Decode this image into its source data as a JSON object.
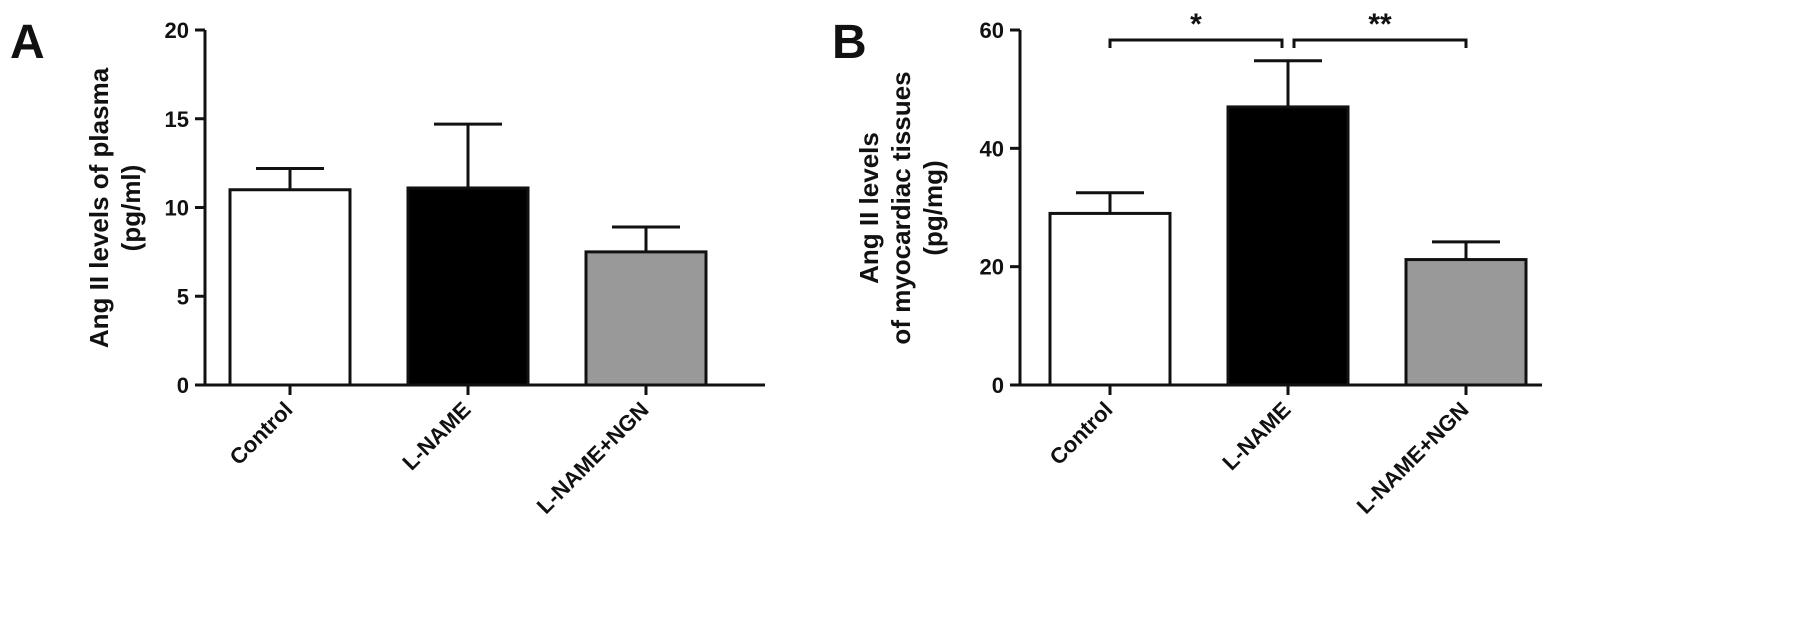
{
  "chart_data": [
    {
      "type": "bar",
      "panel": "A",
      "categories": [
        "Control",
        "L-NAME",
        "L-NAME+NGN"
      ],
      "values": [
        11.0,
        11.1,
        7.5
      ],
      "errors": [
        1.2,
        3.6,
        1.4
      ],
      "bar_colors": [
        "#ffffff",
        "#000000",
        "#999999"
      ],
      "ylabel_lines": [
        "Ang II levels of plasma",
        "(pg/ml)"
      ],
      "ylim": [
        0,
        20
      ],
      "yticks": [
        0,
        5,
        10,
        15,
        20
      ],
      "significance": []
    },
    {
      "type": "bar",
      "panel": "B",
      "categories": [
        "Control",
        "L-NAME",
        "L-NAME+NGN"
      ],
      "values": [
        29,
        47,
        21.2
      ],
      "errors": [
        3.5,
        7.8,
        3.0
      ],
      "bar_colors": [
        "#ffffff",
        "#000000",
        "#999999"
      ],
      "ylabel_lines": [
        "Ang II levels",
        "of myocardiac tissues",
        "(pg/mg)"
      ],
      "ylim": [
        0,
        60
      ],
      "yticks": [
        0,
        20,
        40,
        60
      ],
      "significance": [
        {
          "from": 0,
          "to": 1,
          "label": "*"
        },
        {
          "from": 1,
          "to": 2,
          "label": "**"
        }
      ]
    }
  ]
}
